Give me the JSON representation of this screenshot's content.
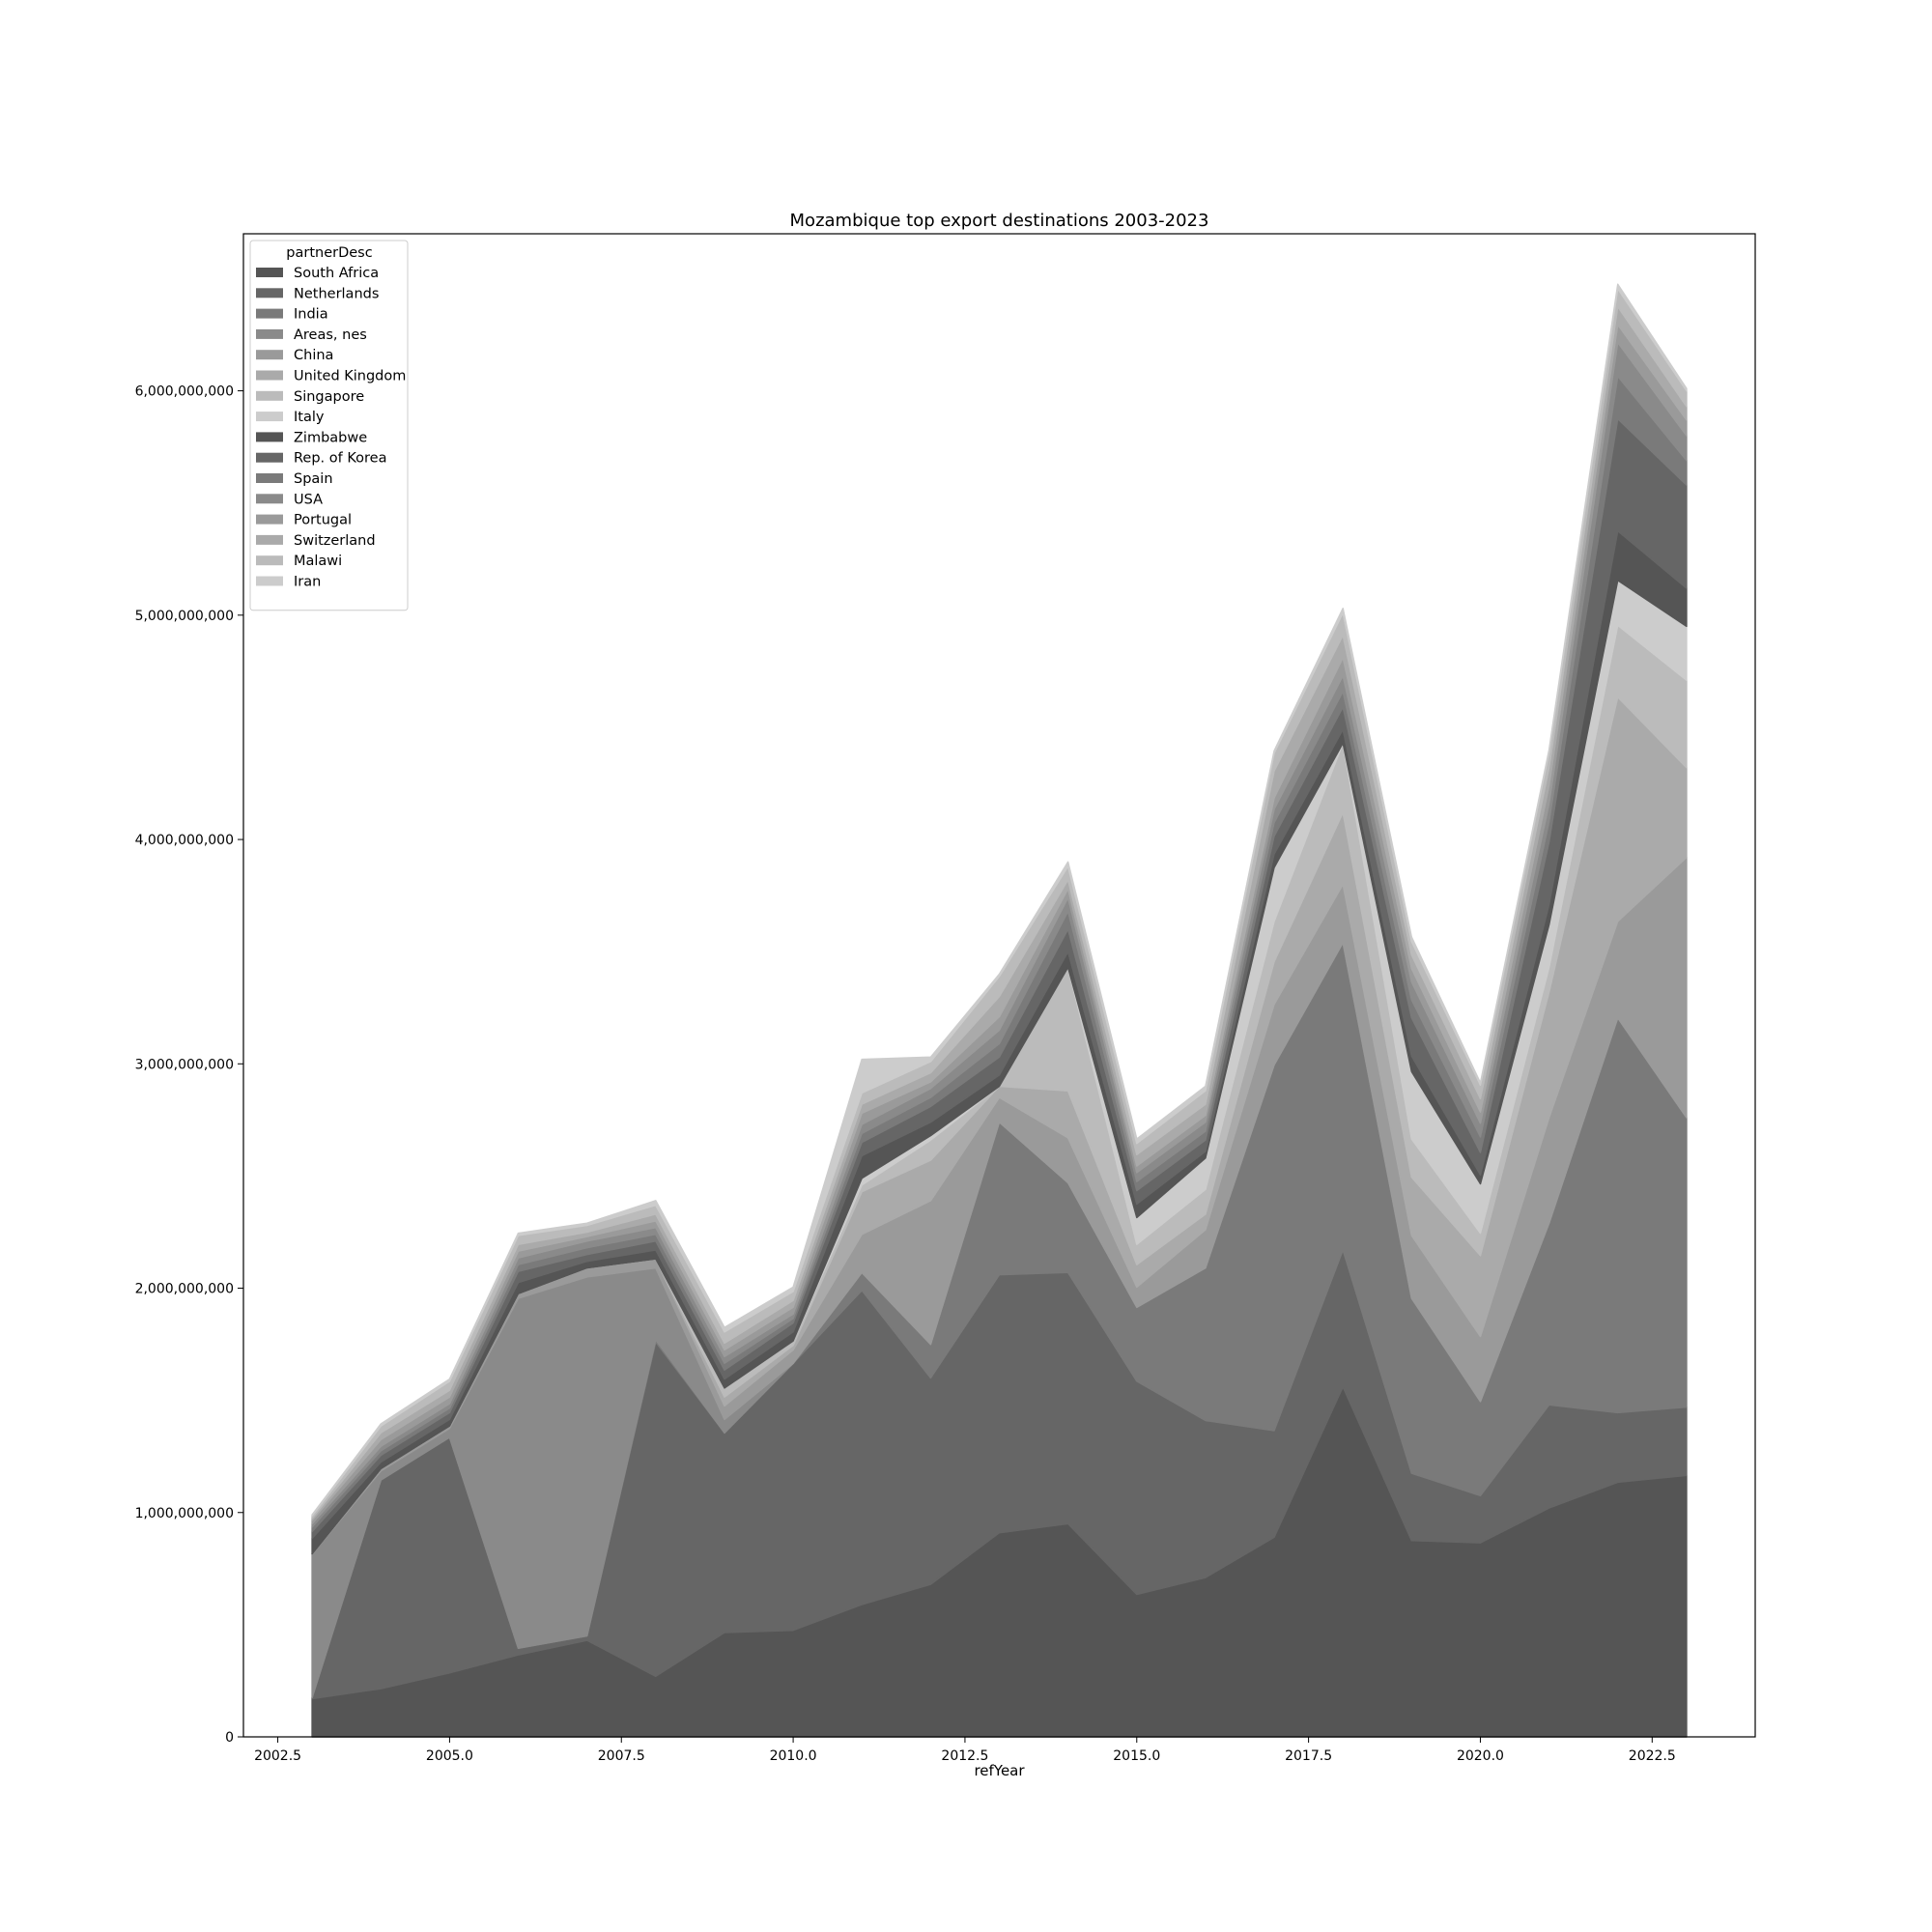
{
  "chart_data": {
    "type": "area",
    "stacked": true,
    "title": "Mozambique top export destinations 2003-2023",
    "xlabel": "refYear",
    "ylabel": "",
    "xlim": [
      2002.0,
      2024.0
    ],
    "ylim": [
      0,
      6700000000
    ],
    "x_ticks": [
      2002.5,
      2005.0,
      2007.5,
      2010.0,
      2012.5,
      2015.0,
      2017.5,
      2020.0,
      2022.5
    ],
    "x_tick_labels": [
      "2002.5",
      "2005.0",
      "2007.5",
      "2010.0",
      "2012.5",
      "2015.0",
      "2017.5",
      "2020.0",
      "2022.5"
    ],
    "y_ticks": [
      0,
      1000000000,
      2000000000,
      3000000000,
      4000000000,
      5000000000,
      6000000000
    ],
    "y_tick_labels": [
      "0",
      "1,000,000,000",
      "2,000,000,000",
      "3,000,000,000",
      "4,000,000,000",
      "5,000,000,000",
      "6,000,000,000"
    ],
    "grid": false,
    "legend_title": "partnerDesc",
    "legend_position": "top-left",
    "x": [
      2003,
      2004,
      2005,
      2006,
      2007,
      2008,
      2009,
      2010,
      2011,
      2012,
      2013,
      2014,
      2015,
      2016,
      2017,
      2018,
      2019,
      2020,
      2021,
      2022,
      2023
    ],
    "series": [
      {
        "name": "South Africa",
        "color": "#555555",
        "values": [
          170000000,
          215000000,
          285000000,
          365000000,
          430000000,
          270000000,
          465000000,
          475000000,
          590000000,
          680000000,
          910000000,
          950000000,
          635000000,
          710000000,
          890000000,
          1560000000,
          875000000,
          865000000,
          1020000000,
          1135000000,
          1165000000
        ]
      },
      {
        "name": "Netherlands",
        "color": "#666666",
        "values": [
          5000000,
          930000000,
          1050000000,
          30000000,
          20000000,
          1490000000,
          890000000,
          1190000000,
          1400000000,
          920000000,
          1150000000,
          1120000000,
          950000000,
          700000000,
          475000000,
          610000000,
          300000000,
          210000000,
          460000000,
          310000000,
          305000000
        ]
      },
      {
        "name": "India",
        "color": "#7a7a7a",
        "values": [
          0,
          0,
          0,
          0,
          0,
          10000000,
          0,
          0,
          80000000,
          150000000,
          680000000,
          400000000,
          330000000,
          680000000,
          1630000000,
          1370000000,
          780000000,
          420000000,
          810000000,
          1760000000,
          1290000000
        ]
      },
      {
        "name": "Areas, nes",
        "color": "#8a8a8a",
        "values": [
          640000000,
          40000000,
          40000000,
          1560000000,
          1600000000,
          320000000,
          60000000,
          0,
          0,
          0,
          0,
          0,
          0,
          0,
          0,
          0,
          0,
          0,
          0,
          0,
          0
        ]
      },
      {
        "name": "China",
        "color": "#9a9a9a",
        "values": [
          0,
          10000000,
          10000000,
          20000000,
          40000000,
          40000000,
          60000000,
          60000000,
          170000000,
          640000000,
          110000000,
          200000000,
          90000000,
          170000000,
          270000000,
          260000000,
          280000000,
          290000000,
          470000000,
          430000000,
          1160000000
        ]
      },
      {
        "name": "United Kingdom",
        "color": "#aaaaaa",
        "values": [
          0,
          0,
          0,
          0,
          0,
          0,
          40000000,
          20000000,
          190000000,
          180000000,
          50000000,
          210000000,
          100000000,
          70000000,
          190000000,
          320000000,
          260000000,
          360000000,
          560000000,
          1000000000,
          400000000
        ]
      },
      {
        "name": "Singapore",
        "color": "#bbbbbb",
        "values": [
          0,
          0,
          0,
          0,
          0,
          0,
          40000000,
          20000000,
          30000000,
          90000000,
          0,
          550000000,
          90000000,
          110000000,
          180000000,
          310000000,
          170000000,
          100000000,
          110000000,
          320000000,
          390000000
        ]
      },
      {
        "name": "Italy",
        "color": "#cccccc",
        "values": [
          0,
          0,
          0,
          0,
          0,
          0,
          0,
          0,
          30000000,
          20000000,
          0,
          0,
          120000000,
          140000000,
          240000000,
          0,
          300000000,
          220000000,
          190000000,
          200000000,
          240000000
        ]
      },
      {
        "name": "Zimbabwe",
        "color": "#555555",
        "values": [
          70000000,
          30000000,
          30000000,
          50000000,
          30000000,
          40000000,
          40000000,
          40000000,
          100000000,
          60000000,
          50000000,
          70000000,
          60000000,
          30000000,
          60000000,
          60000000,
          70000000,
          40000000,
          90000000,
          220000000,
          170000000
        ]
      },
      {
        "name": "Rep. of Korea",
        "color": "#666666",
        "values": [
          30000000,
          30000000,
          30000000,
          50000000,
          30000000,
          40000000,
          40000000,
          40000000,
          60000000,
          70000000,
          80000000,
          100000000,
          60000000,
          50000000,
          80000000,
          100000000,
          170000000,
          100000000,
          280000000,
          500000000,
          460000000
        ]
      },
      {
        "name": "Spain",
        "color": "#7a7a7a",
        "values": [
          20000000,
          20000000,
          20000000,
          30000000,
          30000000,
          30000000,
          30000000,
          20000000,
          40000000,
          40000000,
          60000000,
          80000000,
          40000000,
          40000000,
          60000000,
          70000000,
          80000000,
          70000000,
          90000000,
          190000000,
          110000000
        ]
      },
      {
        "name": "USA",
        "color": "#8a8a8a",
        "values": [
          15000000,
          20000000,
          20000000,
          30000000,
          30000000,
          30000000,
          30000000,
          20000000,
          40000000,
          40000000,
          60000000,
          60000000,
          40000000,
          40000000,
          60000000,
          70000000,
          80000000,
          60000000,
          80000000,
          150000000,
          110000000
        ]
      },
      {
        "name": "Portugal",
        "color": "#9a9a9a",
        "values": [
          15000000,
          30000000,
          30000000,
          30000000,
          20000000,
          30000000,
          30000000,
          30000000,
          50000000,
          30000000,
          60000000,
          40000000,
          30000000,
          30000000,
          50000000,
          80000000,
          60000000,
          50000000,
          80000000,
          80000000,
          70000000
        ]
      },
      {
        "name": "Switzerland",
        "color": "#aaaaaa",
        "values": [
          10000000,
          30000000,
          30000000,
          30000000,
          20000000,
          30000000,
          30000000,
          30000000,
          40000000,
          40000000,
          90000000,
          40000000,
          50000000,
          50000000,
          120000000,
          100000000,
          60000000,
          60000000,
          80000000,
          80000000,
          60000000
        ]
      },
      {
        "name": "Malawi",
        "color": "#bbbbbb",
        "values": [
          10000000,
          30000000,
          40000000,
          40000000,
          30000000,
          40000000,
          50000000,
          40000000,
          50000000,
          50000000,
          90000000,
          60000000,
          50000000,
          60000000,
          80000000,
          100000000,
          60000000,
          60000000,
          70000000,
          80000000,
          70000000
        ]
      },
      {
        "name": "Iran",
        "color": "#cccccc",
        "values": [
          5000000,
          10000000,
          10000000,
          10000000,
          10000000,
          20000000,
          20000000,
          20000000,
          150000000,
          20000000,
          10000000,
          20000000,
          20000000,
          20000000,
          10000000,
          20000000,
          20000000,
          10000000,
          10000000,
          20000000,
          10000000
        ]
      }
    ]
  }
}
